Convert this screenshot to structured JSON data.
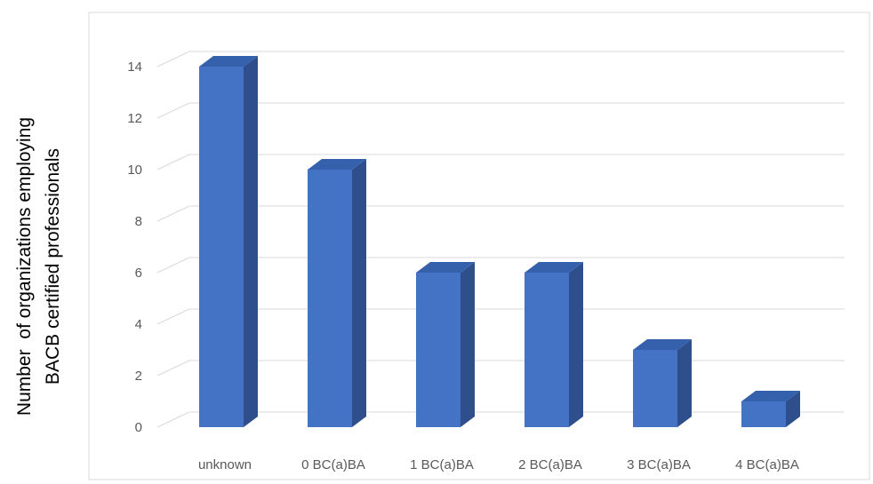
{
  "chart_data": {
    "type": "bar",
    "style": "3d-column",
    "categories": [
      "unknown",
      "0 BC(a)BA",
      "1 BC(a)BA",
      "2 BC(a)BA",
      "3 BC(a)BA",
      "4 BC(a)BA"
    ],
    "values": [
      14,
      10,
      6,
      6,
      3,
      1
    ],
    "ylabel_line1": "Number  of organizations employing",
    "ylabel_line2": "BACB certified professionals",
    "yticks": [
      "0",
      "2",
      "4",
      "6",
      "8",
      "10",
      "12",
      "14"
    ],
    "ylim": [
      0,
      14
    ],
    "grid": true,
    "legend": "none",
    "colors": {
      "bar_front": "#4472c4",
      "bar_side": "#2f4f8c",
      "bar_top": "#3560ab",
      "grid": "#d9d9d9",
      "border": "#d9d9d9"
    }
  }
}
